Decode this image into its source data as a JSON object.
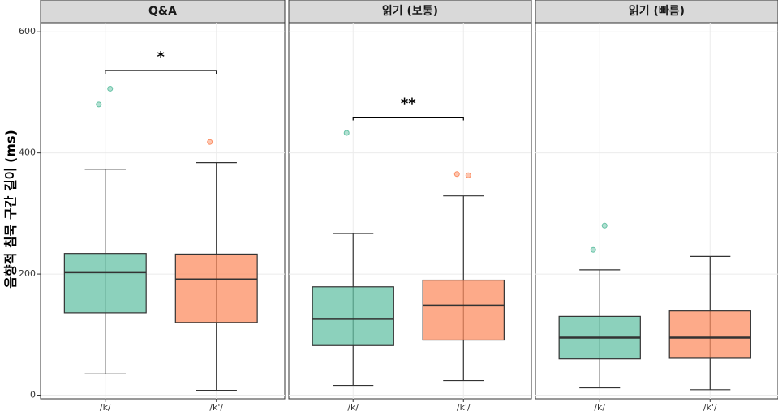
{
  "chart_data": {
    "type": "box",
    "ylabel": "음향적 침묵 구간 길이 (ms)",
    "categories": [
      "/k/",
      "/k'/"
    ],
    "colors": [
      "#66c2a5",
      "#fc8d62"
    ],
    "ylim": [
      -6,
      615
    ],
    "yticks": [
      0,
      200,
      400,
      600
    ],
    "grid": true,
    "panels": [
      {
        "title": "Q&A",
        "boxes": [
          {
            "whisker_low": 35,
            "q1": 136,
            "median": 203,
            "q3": 234,
            "whisker_high": 373,
            "outliers": [
              480,
              506
            ]
          },
          {
            "whisker_low": 8,
            "q1": 120,
            "median": 191,
            "q3": 233,
            "whisker_high": 384,
            "outliers": [
              418
            ]
          }
        ],
        "annotation": {
          "label": "*",
          "y": 536
        }
      },
      {
        "title": "읽기 (보통)",
        "boxes": [
          {
            "whisker_low": 16,
            "q1": 82,
            "median": 126,
            "q3": 179,
            "whisker_high": 267,
            "outliers": [
              433
            ]
          },
          {
            "whisker_low": 24,
            "q1": 91,
            "median": 148,
            "q3": 190,
            "whisker_high": 329,
            "outliers": [
              365,
              363
            ]
          }
        ],
        "annotation": {
          "label": "**",
          "y": 459
        }
      },
      {
        "title": "읽기 (빠름)",
        "boxes": [
          {
            "whisker_low": 12,
            "q1": 60,
            "median": 95,
            "q3": 130,
            "whisker_high": 207,
            "outliers": [
              240,
              280
            ]
          },
          {
            "whisker_low": 9,
            "q1": 61,
            "median": 95,
            "q3": 139,
            "whisker_high": 229,
            "outliers": []
          }
        ]
      }
    ]
  }
}
